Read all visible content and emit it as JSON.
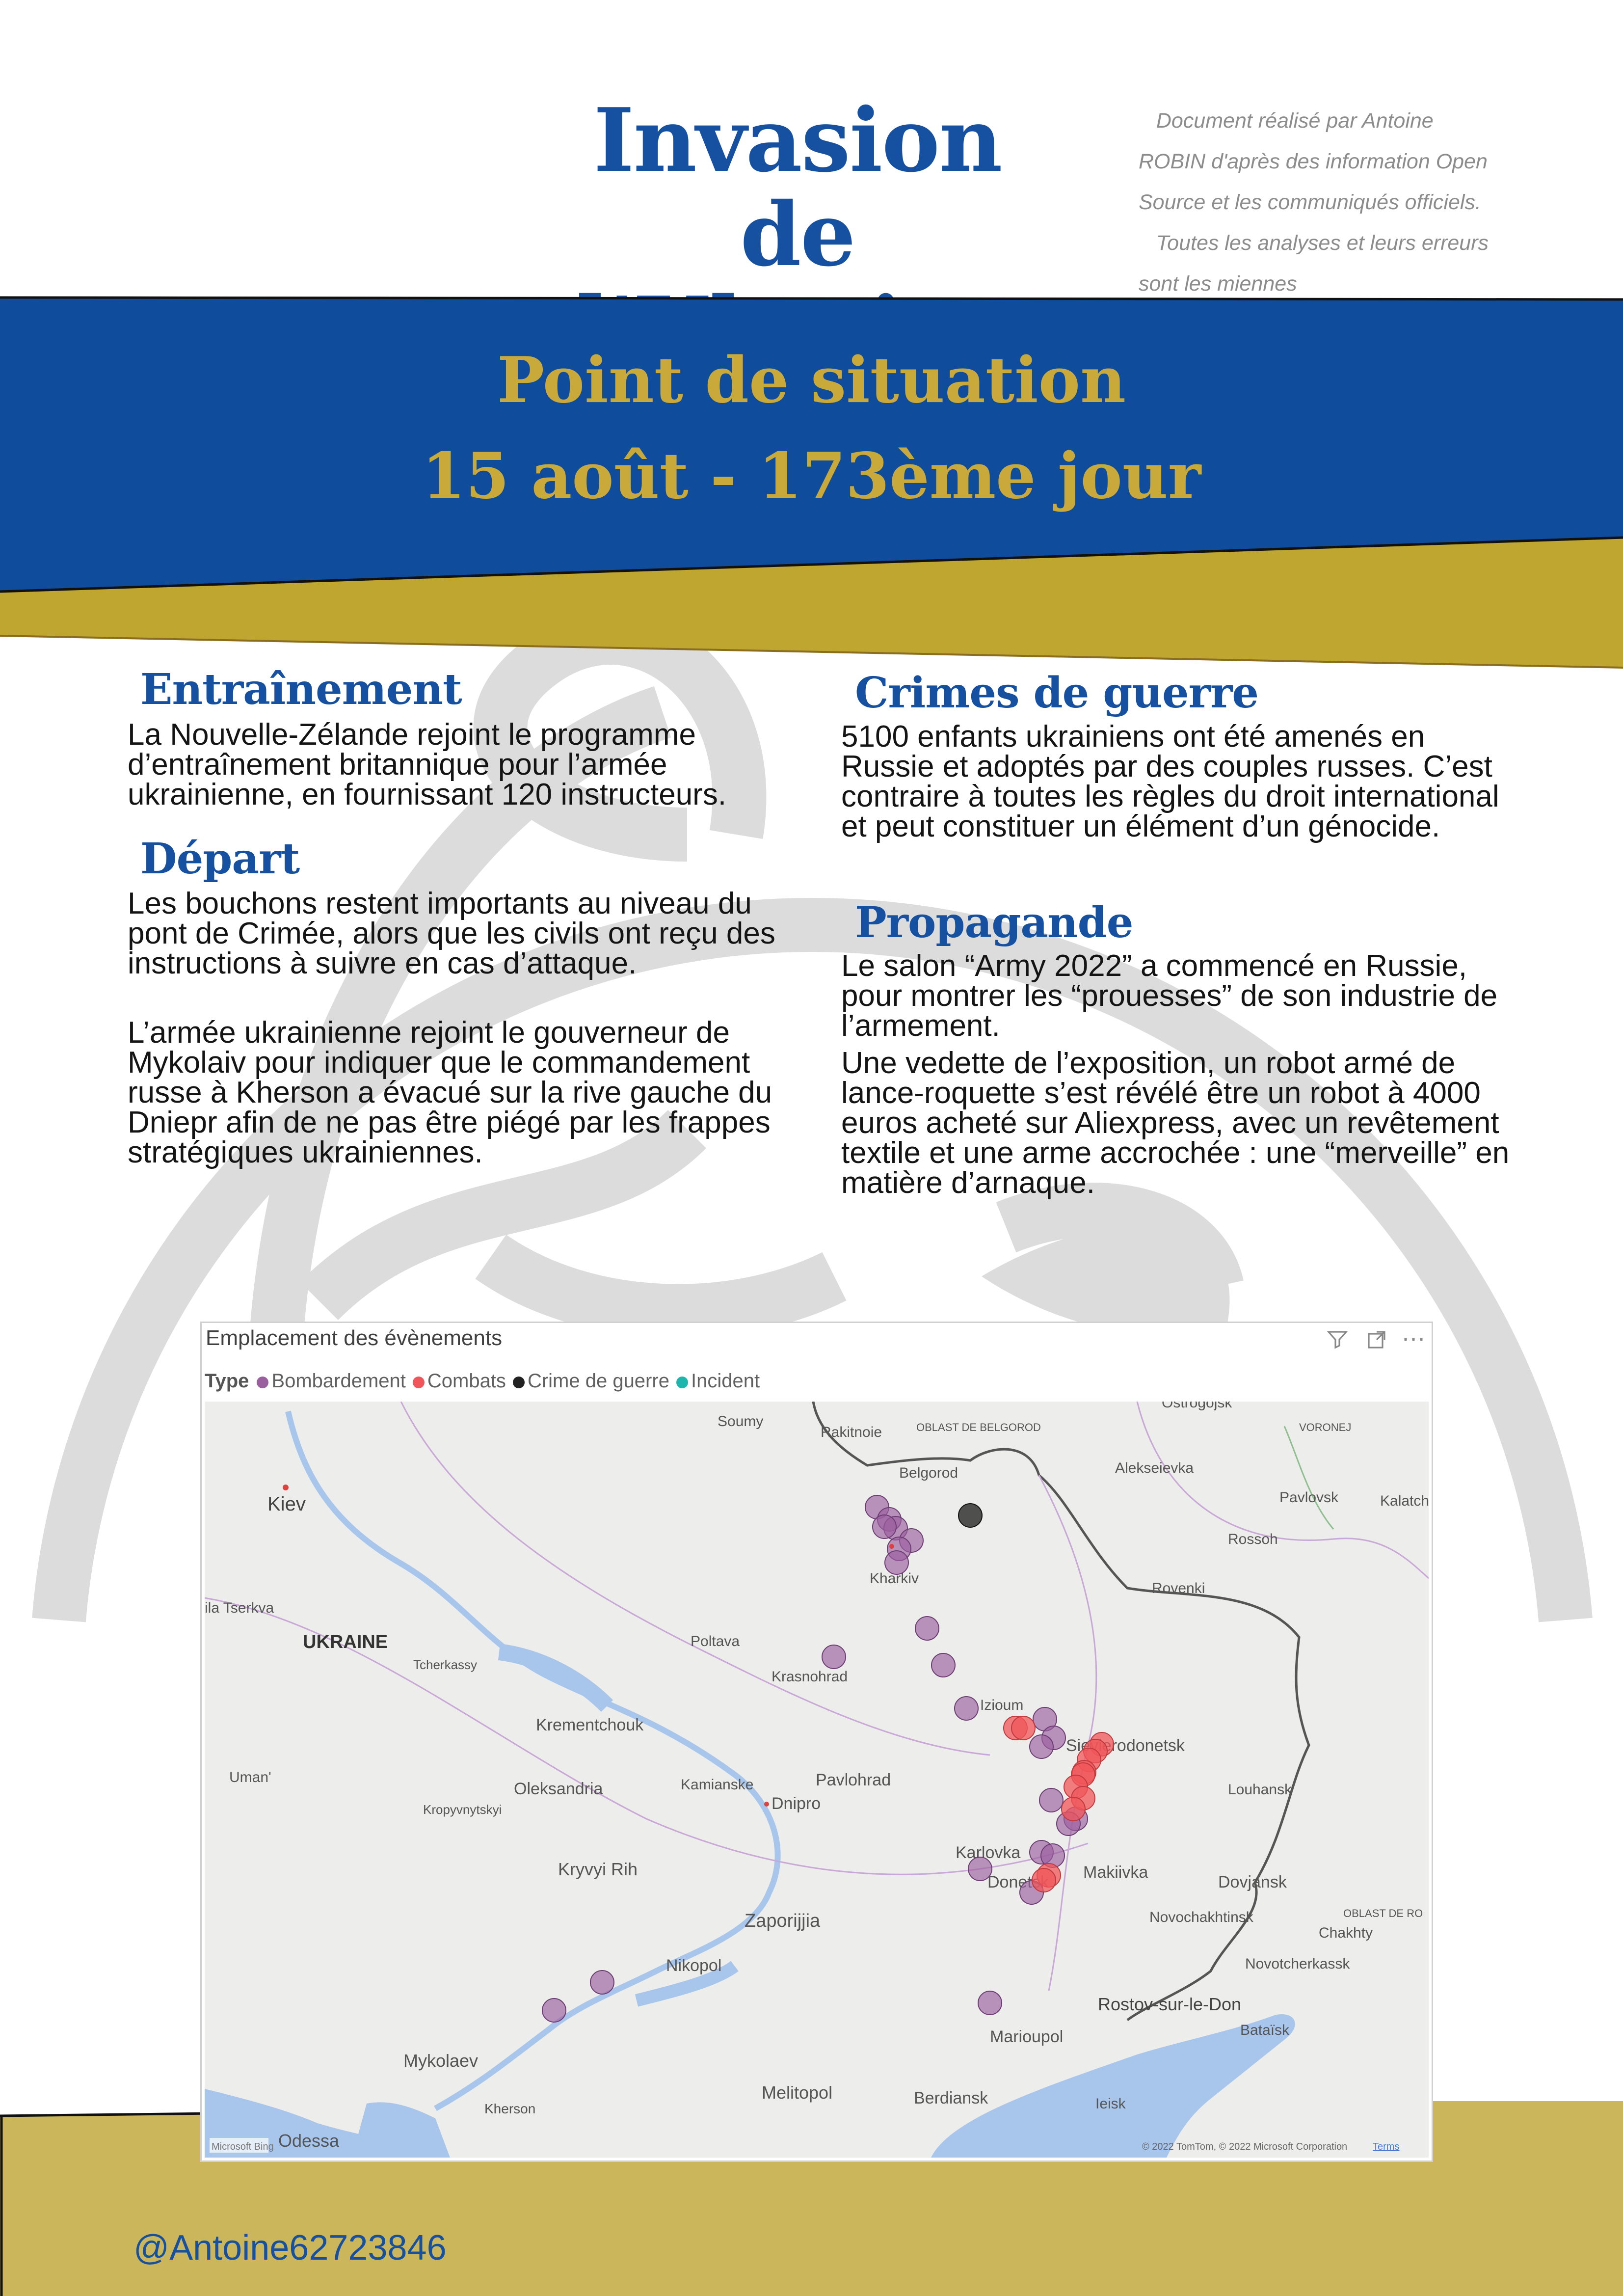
{
  "header": {
    "title_line1": "Invasion de",
    "title_line2": "l'Ukraine",
    "credits": "   Document réalisé par Antoine\nROBIN d'après des information Open\nSource et les communiqués officiels.\n   Toutes les analyses et leurs erreurs\nsont les miennes"
  },
  "banner": {
    "line1": "Point de situation",
    "line2": "15 août - 173ème jour"
  },
  "sections": {
    "entrainement": {
      "title": "Entraînement",
      "p1": "  La Nouvelle-Zélande rejoint le programme d’entraînement britannique pour l’armée ukrainienne, en fournissant 120 instructeurs."
    },
    "depart": {
      "title": "Départ",
      "p1": "  Les bouchons restent importants au niveau du pont de Crimée, alors que les civils ont reçu des instructions à suivre en cas d’attaque.",
      "p2": "  L’armée ukrainienne rejoint le gouverneur de Mykolaiv pour indiquer que le commandement russe à Kherson a évacué sur la rive gauche du Dniepr afin de ne pas être piégé par les frappes stratégiques ukrainiennes."
    },
    "crimes": {
      "title": "Crimes de guerre",
      "p1": "  5100 enfants ukrainiens ont été amenés en Russie et adoptés par des couples russes. C’est contraire à toutes les règles du droit international et peut constituer un élément d’un génocide."
    },
    "propagande": {
      "title": "Propagande",
      "p1": "  Le salon “Army 2022” a commencé en Russie, pour montrer les “prouesses” de son industrie de l’armement.",
      "p2": "  Une vedette de l’exposition, un robot armé de lance-roquette s’est révélé être un robot à 4000 euros acheté sur Aliexpress, avec un revêtement textile et une arme accrochée : une “merveille” en matière d’arnaque."
    }
  },
  "map": {
    "title": "Emplacement des évènements",
    "legend_label": "Type",
    "legend": [
      {
        "name": "Bombardement",
        "color": "#9b5fa0"
      },
      {
        "name": "Combats",
        "color": "#f0555a"
      },
      {
        "name": "Crime de guerre",
        "color": "#222222"
      },
      {
        "name": "Incident",
        "color": "#1fb5ad"
      }
    ],
    "filter_icon": "filter-icon",
    "expand_icon": "expand-icon",
    "more_icon": "more-options-icon",
    "places": {
      "soumy": "Soumy",
      "rakitnoie": "Rakitnoie",
      "oblast_belgorod": "OBLAST DE BELGOROD",
      "belgorod": "Belgorod",
      "ostrogojsk": "Ostrogojsk",
      "voronej": "VORONEJ",
      "alekseievka": "Alekseievka",
      "pavlovsk": "Pavlovsk",
      "kalatch": "Kalatch",
      "rossoh": "Rossoh",
      "kiev": "Kiev",
      "kharkiv": "Kharkiv",
      "rovenki": "Rovenki",
      "bila_tserkva": "ila Tserkva",
      "ukraine": "UKRAINE",
      "poltava": "Poltava",
      "tcherkassy": "Tcherkassy",
      "krasnohrad": "Krasnohrad",
      "izioum": "Izioum",
      "krementchouk": "Krementchouk",
      "sievierodonetsk": "Sievierodonetsk",
      "uman": "Uman'",
      "oleksandria": "Oleksandria",
      "kamianske": "Kamianske",
      "pavlohrad": "Pavlohrad",
      "dnipro": "Dnipro",
      "louhansk": "Louhansk",
      "kropyvnytskyi": "Kropyvnytskyi",
      "karlovka": "Karlovka",
      "kryvyi_rih": "Kryvyi Rih",
      "makiivka": "Makiivka",
      "donetsk": "Donetsk",
      "dovjansk": "Dovjansk",
      "oblast_rostov": "OBLAST DE RO",
      "zaporijjia": "Zaporijjia",
      "novochakhtinsk": "Novochakhtinsk",
      "chakhty": "Chakhty",
      "nikopol": "Nikopol",
      "novotcherkassk": "Novotcherkassk",
      "rostov": "Rostov-sur-le-Don",
      "marioupol": "Marioupol",
      "bataisk": "Bataïsk",
      "mykolaev": "Mykolaev",
      "kherson": "Kherson",
      "melitopol": "Melitopol",
      "berdiansk": "Berdiansk",
      "ieisk": "Ieisk",
      "odessa": "Odessa"
    },
    "copyright": "© 2022 TomTom, © 2022 Microsoft Corporation",
    "terms": "Terms",
    "bing": "Microsoft Bing"
  },
  "footer": {
    "handle": "@Antoine62723846"
  },
  "colors": {
    "blue": "#1650a0",
    "gold": "#c8a93a",
    "bottom_gold": "#ccb65c",
    "ribbon_gold": "#bfa631",
    "watermark": "#d9d9d9"
  }
}
